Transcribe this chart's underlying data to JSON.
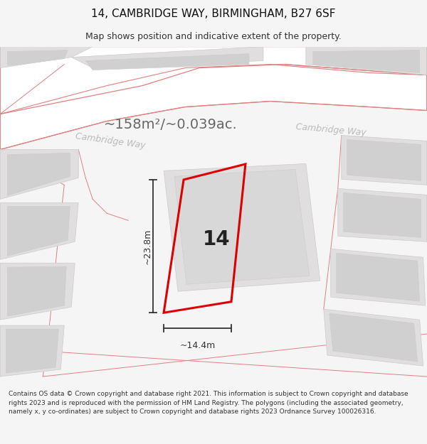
{
  "title": "14, CAMBRIDGE WAY, BIRMINGHAM, B27 6SF",
  "subtitle": "Map shows position and indicative extent of the property.",
  "footer": "Contains OS data © Crown copyright and database right 2021. This information is subject to Crown copyright and database rights 2023 and is reproduced with the permission of HM Land Registry. The polygons (including the associated geometry, namely x, y co-ordinates) are subject to Crown copyright and database rights 2023 Ordnance Survey 100026316.",
  "area_label": "~158m²/~0.039ac.",
  "street_label1": "Cambridge Way",
  "street_label2": "Cambridge Way",
  "number_label": "14",
  "width_label": "~14.4m",
  "height_label": "~23.8m",
  "bg_color": "#f5f5f5",
  "map_bg": "#f0eeee",
  "road_fill": "#ffffff",
  "road_stroke": "#e08080",
  "building_fill": "#e0dede",
  "building_stroke": "#cccccc",
  "plot_stroke": "#dd0000",
  "plot_fill": "none",
  "dimension_color": "#333333",
  "street_label_color": "#bbbbbb",
  "area_label_color": "#666666",
  "title_fontsize": 11,
  "subtitle_fontsize": 9,
  "footer_fontsize": 6.5
}
